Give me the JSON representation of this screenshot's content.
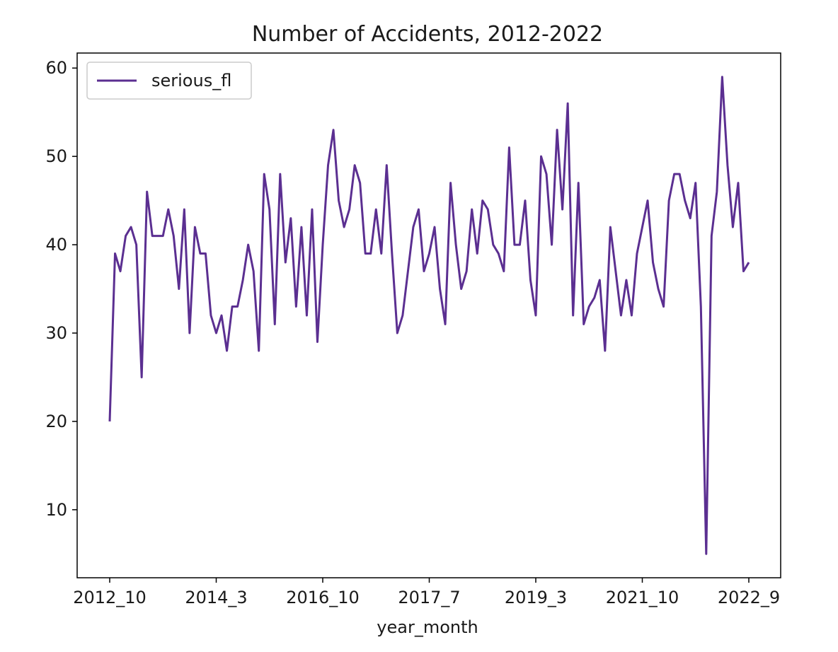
{
  "chart_data": {
    "type": "line",
    "title": "Number of Accidents, 2012-2022",
    "xlabel": "year_month",
    "ylabel": "",
    "ylim": [
      2.3,
      61.7
    ],
    "yticks": [
      10,
      20,
      30,
      40,
      50,
      60
    ],
    "xtick_labels": [
      "2012_10",
      "2014_3",
      "2016_10",
      "2017_7",
      "2019_3",
      "2021_10",
      "2022_9"
    ],
    "legend_position": "upper-left",
    "grid": false,
    "line_color": "#5b2f91",
    "series": [
      {
        "name": "serious_fl",
        "values": [
          20,
          39,
          37,
          41,
          42,
          40,
          25,
          46,
          41,
          41,
          41,
          44,
          41,
          35,
          44,
          30,
          42,
          39,
          39,
          32,
          30,
          32,
          28,
          33,
          33,
          36,
          40,
          37,
          28,
          48,
          44,
          31,
          48,
          38,
          43,
          33,
          42,
          32,
          44,
          29,
          40,
          49,
          53,
          45,
          42,
          44,
          49,
          47,
          39,
          39,
          44,
          39,
          49,
          39,
          30,
          32,
          37,
          42,
          44,
          37,
          39,
          42,
          35,
          31,
          47,
          40,
          35,
          37,
          44,
          39,
          45,
          44,
          40,
          39,
          37,
          51,
          40,
          40,
          45,
          36,
          32,
          50,
          48,
          40,
          53,
          44,
          56,
          32,
          47,
          31,
          33,
          34,
          36,
          28,
          42,
          37,
          32,
          36,
          32,
          39,
          42,
          45,
          38,
          35,
          33,
          45,
          48,
          48,
          45,
          43,
          47,
          33,
          5,
          41,
          46,
          59,
          49,
          42,
          47,
          37,
          38
        ]
      }
    ]
  }
}
